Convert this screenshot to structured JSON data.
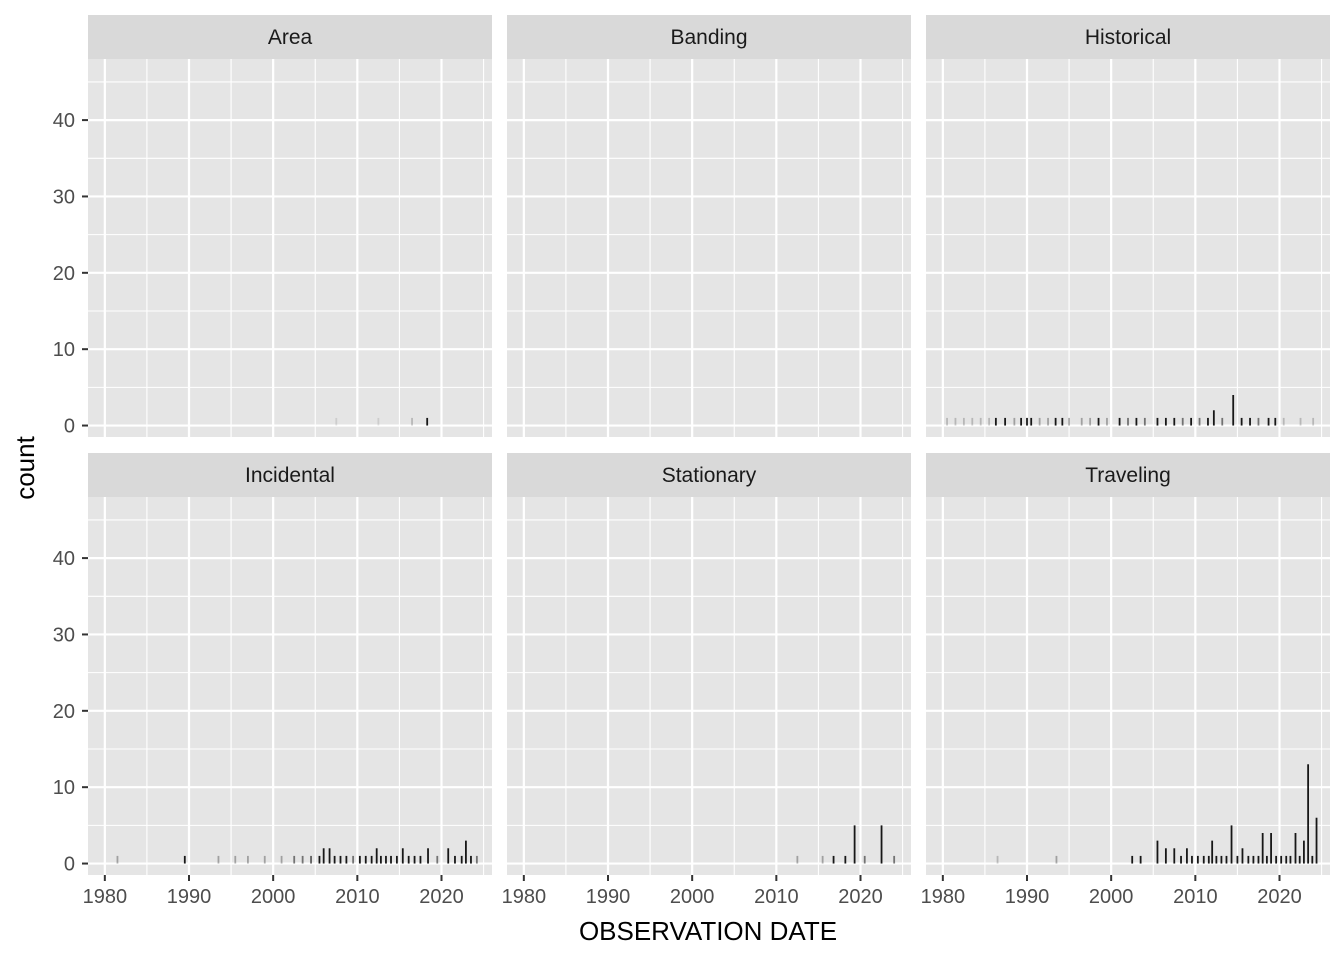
{
  "chart_data": {
    "type": "bar",
    "facet_layout": "2x3",
    "xlabel": "OBSERVATION DATE",
    "ylabel": "count",
    "x_tick_labels": [
      "1980",
      "1990",
      "2000",
      "2010",
      "2020"
    ],
    "y_tick_labels": [
      "0",
      "10",
      "20",
      "30",
      "40"
    ],
    "x_range": [
      1978,
      2026
    ],
    "ylim": [
      -1.5,
      48
    ],
    "grid": true,
    "colors": {
      "panel_bg": "#e5e5e5",
      "strip_bg": "#d9d9d9",
      "grid": "#ffffff",
      "bar": "#000000"
    },
    "facets": [
      {
        "name": "Area",
        "bars": [
          [
            2007.5,
            1,
            0.1
          ],
          [
            2012.5,
            1,
            0.1
          ],
          [
            2016.5,
            1,
            0.2
          ],
          [
            2018.3,
            1,
            0.9
          ]
        ]
      },
      {
        "name": "Banding",
        "bars": []
      },
      {
        "name": "Historical",
        "bars": [
          [
            1980.5,
            1,
            0.2
          ],
          [
            1981.5,
            1,
            0.2
          ],
          [
            1982.5,
            1,
            0.2
          ],
          [
            1983.5,
            1,
            0.2
          ],
          [
            1984.5,
            1,
            0.2
          ],
          [
            1985.5,
            1,
            0.2
          ],
          [
            1986.3,
            1,
            0.9
          ],
          [
            1987.4,
            1,
            0.9
          ],
          [
            1988.5,
            1,
            0.3
          ],
          [
            1989.3,
            1,
            0.9
          ],
          [
            1990.0,
            1,
            0.9
          ],
          [
            1990.5,
            1,
            0.9
          ],
          [
            1991.5,
            1,
            0.3
          ],
          [
            1992.5,
            1,
            0.3
          ],
          [
            1993.4,
            1,
            0.9
          ],
          [
            1994.2,
            1,
            0.9
          ],
          [
            1995.0,
            1,
            0.3
          ],
          [
            1996.5,
            1,
            0.3
          ],
          [
            1997.5,
            1,
            0.3
          ],
          [
            1998.5,
            1,
            0.9
          ],
          [
            1999.5,
            1,
            0.3
          ],
          [
            2001.0,
            1,
            0.9
          ],
          [
            2002.0,
            1,
            0.5
          ],
          [
            2003.0,
            1,
            0.9
          ],
          [
            2004.0,
            1,
            0.5
          ],
          [
            2005.5,
            1,
            0.9
          ],
          [
            2006.5,
            1,
            0.9
          ],
          [
            2007.5,
            1,
            0.9
          ],
          [
            2008.5,
            1,
            0.5
          ],
          [
            2009.5,
            1,
            0.9
          ],
          [
            2010.5,
            1,
            0.5
          ],
          [
            2011.5,
            1,
            0.9
          ],
          [
            2012.2,
            2,
            0.9
          ],
          [
            2013.2,
            1,
            0.5
          ],
          [
            2014.5,
            4,
            0.9
          ],
          [
            2015.5,
            1,
            0.9
          ],
          [
            2016.5,
            1,
            0.9
          ],
          [
            2017.5,
            1,
            0.5
          ],
          [
            2018.7,
            1,
            0.9
          ],
          [
            2019.5,
            1,
            0.9
          ],
          [
            2020.5,
            1,
            0.2
          ],
          [
            2022.5,
            1,
            0.2
          ],
          [
            2024.0,
            1,
            0.2
          ]
        ]
      },
      {
        "name": "Incidental",
        "bars": [
          [
            1981.5,
            1,
            0.3
          ],
          [
            1989.5,
            1,
            0.9
          ],
          [
            1993.5,
            1,
            0.3
          ],
          [
            1995.5,
            1,
            0.3
          ],
          [
            1997.0,
            1,
            0.3
          ],
          [
            1999.0,
            1,
            0.3
          ],
          [
            2001.0,
            1,
            0.3
          ],
          [
            2002.5,
            1,
            0.5
          ],
          [
            2003.5,
            1,
            0.5
          ],
          [
            2004.5,
            1,
            0.6
          ],
          [
            2005.5,
            1,
            0.9
          ],
          [
            2006.0,
            2,
            0.9
          ],
          [
            2006.7,
            2,
            0.9
          ],
          [
            2007.3,
            1,
            0.9
          ],
          [
            2008.0,
            1,
            0.9
          ],
          [
            2008.7,
            1,
            0.9
          ],
          [
            2009.5,
            1,
            0.5
          ],
          [
            2010.3,
            1,
            0.9
          ],
          [
            2011.0,
            1,
            0.9
          ],
          [
            2011.7,
            1,
            0.9
          ],
          [
            2012.3,
            2,
            0.9
          ],
          [
            2012.8,
            1,
            0.9
          ],
          [
            2013.4,
            1,
            0.9
          ],
          [
            2014.0,
            1,
            0.9
          ],
          [
            2014.7,
            1,
            0.9
          ],
          [
            2015.4,
            2,
            0.9
          ],
          [
            2016.1,
            1,
            0.9
          ],
          [
            2016.8,
            1,
            0.9
          ],
          [
            2017.5,
            1,
            0.9
          ],
          [
            2018.4,
            2,
            0.9
          ],
          [
            2019.5,
            1,
            0.5
          ],
          [
            2020.8,
            2,
            0.9
          ],
          [
            2021.6,
            1,
            0.9
          ],
          [
            2022.4,
            1,
            0.9
          ],
          [
            2022.9,
            3,
            0.9
          ],
          [
            2023.5,
            1,
            0.9
          ],
          [
            2024.2,
            1,
            0.5
          ]
        ]
      },
      {
        "name": "Stationary",
        "bars": [
          [
            2012.5,
            1,
            0.3
          ],
          [
            2015.5,
            1,
            0.3
          ],
          [
            2016.8,
            1,
            0.9
          ],
          [
            2018.2,
            1,
            0.9
          ],
          [
            2019.3,
            5,
            0.9
          ],
          [
            2020.5,
            1,
            0.5
          ],
          [
            2022.5,
            5,
            0.9
          ],
          [
            2024.0,
            1,
            0.5
          ]
        ]
      },
      {
        "name": "Traveling",
        "bars": [
          [
            1986.5,
            1,
            0.2
          ],
          [
            1993.5,
            1,
            0.3
          ],
          [
            2002.5,
            1,
            0.9
          ],
          [
            2003.5,
            1,
            0.9
          ],
          [
            2005.5,
            3,
            0.9
          ],
          [
            2006.5,
            2,
            0.9
          ],
          [
            2007.5,
            2,
            0.9
          ],
          [
            2008.3,
            1,
            0.9
          ],
          [
            2009.0,
            2,
            0.9
          ],
          [
            2009.6,
            1,
            0.9
          ],
          [
            2010.3,
            1,
            0.9
          ],
          [
            2011.0,
            1,
            0.9
          ],
          [
            2011.6,
            1,
            0.9
          ],
          [
            2012.0,
            3,
            0.9
          ],
          [
            2012.5,
            1,
            0.9
          ],
          [
            2013.1,
            1,
            0.9
          ],
          [
            2013.7,
            1,
            0.9
          ],
          [
            2014.3,
            5,
            0.9
          ],
          [
            2015.0,
            1,
            0.9
          ],
          [
            2015.6,
            2,
            0.9
          ],
          [
            2016.3,
            1,
            0.9
          ],
          [
            2016.9,
            1,
            0.9
          ],
          [
            2017.5,
            1,
            0.9
          ],
          [
            2018.0,
            4,
            0.9
          ],
          [
            2018.5,
            1,
            0.9
          ],
          [
            2019.0,
            4,
            0.9
          ],
          [
            2019.6,
            1,
            0.9
          ],
          [
            2020.2,
            1,
            0.9
          ],
          [
            2020.8,
            1,
            0.9
          ],
          [
            2021.3,
            1,
            0.9
          ],
          [
            2021.9,
            4,
            0.9
          ],
          [
            2022.4,
            1,
            0.9
          ],
          [
            2022.9,
            3,
            0.9
          ],
          [
            2023.4,
            13,
            0.9
          ],
          [
            2023.9,
            1,
            0.9
          ],
          [
            2024.4,
            6,
            0.9
          ]
        ]
      }
    ]
  }
}
